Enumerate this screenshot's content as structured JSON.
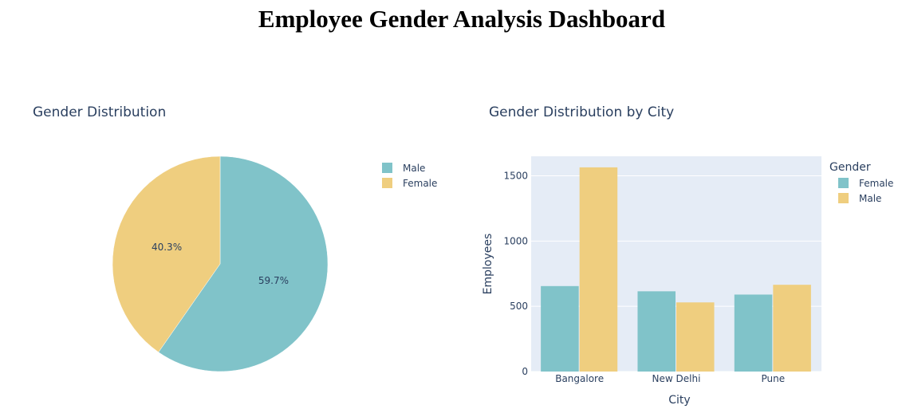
{
  "page": {
    "title": "Employee Gender Analysis Dashboard"
  },
  "colors": {
    "male": "#EFCE7F",
    "female": "#80C3C9",
    "plot_bg": "#E5ECF6",
    "text": "#2A3F5F"
  },
  "chart_data": [
    {
      "type": "pie",
      "title": "Gender Distribution",
      "labels": [
        "Male",
        "Female"
      ],
      "values": [
        59.7,
        40.3
      ],
      "value_labels": [
        "59.7%",
        "40.3%"
      ],
      "colors": [
        "#80C3C9",
        "#EFCE7F"
      ],
      "legend": [
        "Male",
        "Female"
      ],
      "legend_position": "right"
    },
    {
      "type": "bar",
      "title": "Gender Distribution by City",
      "categories": [
        "Bangalore",
        "New Delhi",
        "Pune"
      ],
      "series": [
        {
          "name": "Female",
          "values": [
            655,
            615,
            590
          ],
          "color": "#80C3C9"
        },
        {
          "name": "Male",
          "values": [
            1565,
            530,
            665
          ],
          "color": "#EFCE7F"
        }
      ],
      "xlabel": "City",
      "ylabel": "Employees",
      "ylim": [
        0,
        1650
      ],
      "yticks": [
        0,
        500,
        1000,
        1500
      ],
      "legend_title": "Gender",
      "legend_position": "top-right",
      "grid": true
    }
  ]
}
